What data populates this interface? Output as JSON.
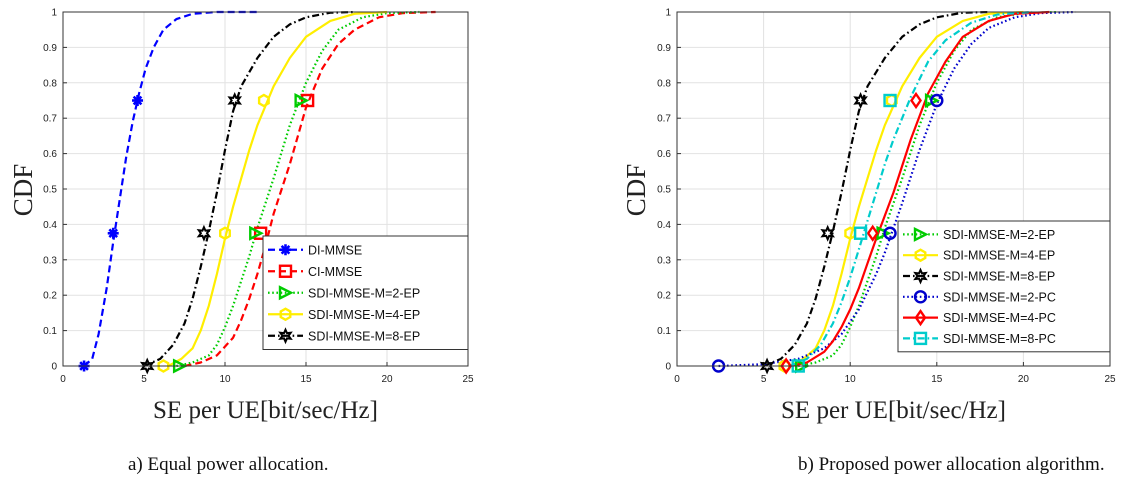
{
  "captions": {
    "left": "a) Equal power allocation.",
    "right": "b) Proposed power allocation algorithm."
  },
  "chart_data": [
    {
      "type": "line",
      "xlabel": "SE per UE[bit/sec/Hz]",
      "ylabel": "CDF",
      "xlim": [
        0,
        25
      ],
      "ylim": [
        0,
        1
      ],
      "xticks": [
        0,
        5,
        10,
        15,
        20,
        25
      ],
      "yticks": [
        0,
        0.1,
        0.2,
        0.3,
        0.4,
        0.5,
        0.6,
        0.7,
        0.8,
        0.9,
        1
      ],
      "grid": true,
      "legend_position": "bottom-right",
      "series": [
        {
          "name": "DI-MMSE",
          "color": "#0000ff",
          "dash": "dashed",
          "marker": "asterisk-icon",
          "x": [
            1.3,
            1.8,
            2.2,
            2.7,
            3.1,
            3.5,
            3.9,
            4.3,
            4.7,
            5.1,
            5.6,
            6.2,
            7.0,
            8.0,
            9.5,
            11.0,
            12.0
          ],
          "y": [
            0,
            0.02,
            0.09,
            0.22,
            0.35,
            0.47,
            0.59,
            0.69,
            0.77,
            0.84,
            0.9,
            0.95,
            0.98,
            0.995,
            1.0,
            1.0,
            1.0
          ],
          "marker_points": [
            [
              1.3,
              0
            ],
            [
              3.1,
              0.375
            ],
            [
              4.6,
              0.75
            ]
          ]
        },
        {
          "name": "CI-MMSE",
          "color": "#ff0000",
          "dash": "dashed",
          "marker": "square-icon",
          "x": [
            7.5,
            8.5,
            9.5,
            10.5,
            11.0,
            11.5,
            12.0,
            12.5,
            13.0,
            14.0,
            15.0,
            16.0,
            17.0,
            18.0,
            19.5,
            21.0,
            23.0
          ],
          "y": [
            0,
            0.01,
            0.03,
            0.08,
            0.13,
            0.19,
            0.26,
            0.34,
            0.43,
            0.57,
            0.73,
            0.84,
            0.91,
            0.95,
            0.985,
            0.997,
            1.0
          ],
          "marker_points": [
            [
              12.2,
              0.375
            ],
            [
              15.1,
              0.75
            ]
          ]
        },
        {
          "name": "SDI-MMSE-M=2-EP",
          "color": "#00cc00",
          "dash": "dotted",
          "marker": "triangle-right-icon",
          "x": [
            7.0,
            8.0,
            9.0,
            9.5,
            10.0,
            10.5,
            11.0,
            11.5,
            12.0,
            13.0,
            14.0,
            15.0,
            16.0,
            17.0,
            18.5,
            20.0,
            22.0
          ],
          "y": [
            0,
            0.01,
            0.03,
            0.06,
            0.11,
            0.17,
            0.24,
            0.31,
            0.39,
            0.53,
            0.68,
            0.8,
            0.89,
            0.95,
            0.985,
            0.997,
            1.0
          ],
          "marker_points": [
            [
              7.2,
              0
            ],
            [
              11.9,
              0.375
            ],
            [
              14.7,
              0.75
            ]
          ]
        },
        {
          "name": "SDI-MMSE-M=4-EP",
          "color": "#ffee00",
          "dash": "solid",
          "marker": "hexagon-icon",
          "x": [
            6.5,
            7.3,
            8.0,
            8.5,
            9.0,
            9.5,
            10.0,
            10.5,
            11.0,
            11.5,
            12.0,
            13.0,
            14.0,
            15.0,
            16.5,
            18.0,
            20.0
          ],
          "y": [
            0,
            0.02,
            0.05,
            0.1,
            0.17,
            0.26,
            0.36,
            0.45,
            0.53,
            0.61,
            0.68,
            0.79,
            0.87,
            0.93,
            0.975,
            0.995,
            1.0
          ],
          "marker_points": [
            [
              6.2,
              0
            ],
            [
              10.0,
              0.375
            ],
            [
              12.4,
              0.75
            ]
          ]
        },
        {
          "name": "SDI-MMSE-M=8-EP",
          "color": "#000000",
          "dash": "dashdot",
          "marker": "star-icon",
          "x": [
            5.0,
            6.0,
            6.8,
            7.5,
            8.0,
            8.5,
            9.0,
            9.5,
            10.0,
            10.5,
            11.0,
            12.0,
            13.0,
            14.0,
            15.0,
            16.5,
            18.0
          ],
          "y": [
            0,
            0.02,
            0.06,
            0.12,
            0.19,
            0.28,
            0.38,
            0.49,
            0.61,
            0.72,
            0.79,
            0.87,
            0.93,
            0.965,
            0.985,
            0.998,
            1.0
          ],
          "marker_points": [
            [
              5.2,
              0
            ],
            [
              8.7,
              0.375
            ],
            [
              10.6,
              0.75
            ]
          ]
        }
      ]
    },
    {
      "type": "line",
      "xlabel": "SE per UE[bit/sec/Hz]",
      "ylabel": "CDF",
      "xlim": [
        0,
        25
      ],
      "ylim": [
        0,
        1
      ],
      "xticks": [
        0,
        5,
        10,
        15,
        20,
        25
      ],
      "yticks": [
        0,
        0.1,
        0.2,
        0.3,
        0.4,
        0.5,
        0.6,
        0.7,
        0.8,
        0.9,
        1
      ],
      "grid": true,
      "legend_position": "bottom-right",
      "series": [
        {
          "name": "SDI-MMSE-M=2-EP",
          "color": "#00cc00",
          "dash": "dotted",
          "marker": "triangle-right-icon",
          "x": [
            7.0,
            8.0,
            9.0,
            9.5,
            10.0,
            10.5,
            11.0,
            11.5,
            12.0,
            13.0,
            14.0,
            15.0,
            16.0,
            17.0,
            18.5,
            20.0,
            22.0
          ],
          "y": [
            0,
            0.01,
            0.03,
            0.06,
            0.11,
            0.17,
            0.24,
            0.31,
            0.39,
            0.53,
            0.68,
            0.8,
            0.89,
            0.95,
            0.985,
            0.997,
            1.0
          ],
          "marker_points": [
            [
              7.2,
              0
            ],
            [
              11.9,
              0.375
            ],
            [
              14.7,
              0.75
            ]
          ]
        },
        {
          "name": "SDI-MMSE-M=4-EP",
          "color": "#ffee00",
          "dash": "solid",
          "marker": "hexagon-icon",
          "x": [
            6.5,
            7.3,
            8.0,
            8.5,
            9.0,
            9.5,
            10.0,
            10.5,
            11.0,
            11.5,
            12.0,
            13.0,
            14.0,
            15.0,
            16.5,
            18.0,
            20.0
          ],
          "y": [
            0,
            0.02,
            0.05,
            0.1,
            0.17,
            0.26,
            0.36,
            0.45,
            0.53,
            0.61,
            0.68,
            0.79,
            0.87,
            0.93,
            0.975,
            0.995,
            1.0
          ],
          "marker_points": [
            [
              6.2,
              0
            ],
            [
              10.0,
              0.375
            ],
            [
              12.4,
              0.75
            ]
          ]
        },
        {
          "name": "SDI-MMSE-M=8-EP",
          "color": "#000000",
          "dash": "dashdot",
          "marker": "star-icon",
          "x": [
            5.0,
            6.0,
            6.8,
            7.5,
            8.0,
            8.5,
            9.0,
            9.5,
            10.0,
            10.5,
            11.0,
            12.0,
            13.0,
            14.0,
            15.0,
            16.5,
            18.0
          ],
          "y": [
            0,
            0.02,
            0.06,
            0.12,
            0.19,
            0.28,
            0.38,
            0.49,
            0.61,
            0.72,
            0.79,
            0.87,
            0.93,
            0.965,
            0.985,
            0.998,
            1.0
          ],
          "marker_points": [
            [
              5.2,
              0
            ],
            [
              8.7,
              0.375
            ],
            [
              10.6,
              0.75
            ]
          ]
        },
        {
          "name": "SDI-MMSE-M=2-PC",
          "color": "#0000cc",
          "dash": "dotted",
          "marker": "circle-icon",
          "x": [
            2.4,
            5.0,
            7.0,
            8.5,
            9.5,
            10.5,
            11.5,
            12.0,
            13.0,
            14.0,
            15.0,
            16.0,
            17.0,
            18.0,
            19.5,
            21.0,
            23.0
          ],
          "y": [
            0,
            0.005,
            0.02,
            0.05,
            0.09,
            0.16,
            0.26,
            0.32,
            0.46,
            0.61,
            0.74,
            0.84,
            0.91,
            0.955,
            0.985,
            0.997,
            1.0
          ],
          "marker_points": [
            [
              2.4,
              0
            ],
            [
              12.3,
              0.375
            ],
            [
              15.0,
              0.75
            ]
          ]
        },
        {
          "name": "SDI-MMSE-M=4-PC",
          "color": "#ff0000",
          "dash": "solid",
          "marker": "diamond-icon",
          "x": [
            6.5,
            7.5,
            8.5,
            9.0,
            9.5,
            10.0,
            10.5,
            11.0,
            11.5,
            12.5,
            13.5,
            14.5,
            15.5,
            16.5,
            18.0,
            19.5,
            21.5
          ],
          "y": [
            0,
            0.01,
            0.04,
            0.07,
            0.11,
            0.16,
            0.22,
            0.29,
            0.36,
            0.49,
            0.64,
            0.77,
            0.86,
            0.93,
            0.975,
            0.995,
            1.0
          ],
          "marker_points": [
            [
              6.3,
              0
            ],
            [
              11.3,
              0.375
            ],
            [
              13.8,
              0.75
            ]
          ]
        },
        {
          "name": "SDI-MMSE-M=8-PC",
          "color": "#00cccc",
          "dash": "dashdot",
          "marker": "square-icon",
          "x": [
            6.5,
            7.5,
            8.3,
            9.0,
            9.5,
            10.0,
            10.5,
            11.0,
            11.5,
            12.0,
            12.5,
            13.5,
            14.5,
            15.5,
            17.0,
            18.5,
            20.5
          ],
          "y": [
            0,
            0.02,
            0.06,
            0.12,
            0.18,
            0.25,
            0.33,
            0.41,
            0.49,
            0.57,
            0.64,
            0.76,
            0.86,
            0.92,
            0.97,
            0.993,
            1.0
          ],
          "marker_points": [
            [
              7.0,
              0
            ],
            [
              10.6,
              0.375
            ],
            [
              12.3,
              0.75
            ]
          ]
        }
      ]
    }
  ]
}
